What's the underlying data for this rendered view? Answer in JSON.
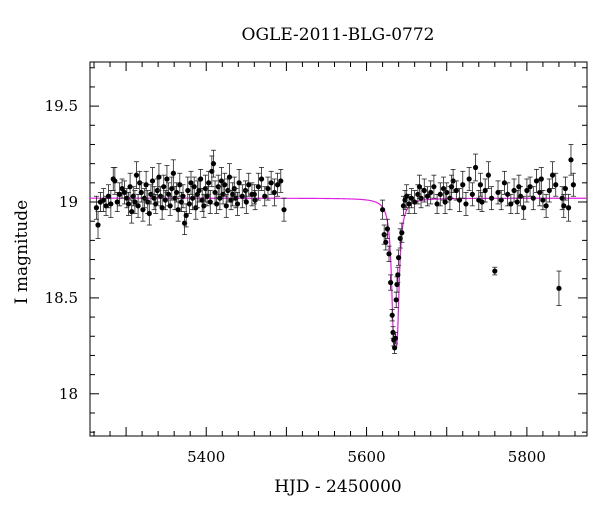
{
  "chart_data": {
    "type": "scatter",
    "title": "OGLE-2011-BLG-0772",
    "xlabel": "HJD - 2450000",
    "ylabel": "I magnitude",
    "xlim": [
      5255,
      5875
    ],
    "ylim": [
      19.73,
      17.78
    ],
    "y_inverted": true,
    "x_ticks": [
      5400,
      5600,
      5800
    ],
    "y_ticks": [
      18,
      18.5,
      19,
      19.5
    ],
    "grid": false,
    "colors": {
      "points": "#000000",
      "model": "#e020e0"
    },
    "series": [
      {
        "kind": "points",
        "points": [
          [
            5263,
            18.97,
            0.06
          ],
          [
            5265,
            18.88,
            0.07
          ],
          [
            5268,
            19.0,
            0.05
          ],
          [
            5272,
            19.01,
            0.06
          ],
          [
            5275,
            18.98,
            0.05
          ],
          [
            5278,
            19.03,
            0.06
          ],
          [
            5281,
            18.99,
            0.07
          ],
          [
            5284,
            19.12,
            0.06
          ],
          [
            5286,
            19.11,
            0.07
          ],
          [
            5289,
            19.0,
            0.05
          ],
          [
            5292,
            19.04,
            0.06
          ],
          [
            5295,
            19.07,
            0.05
          ],
          [
            5298,
            19.05,
            0.06
          ],
          [
            5301,
            19.02,
            0.05
          ],
          [
            5303,
            18.99,
            0.06
          ],
          [
            5305,
            19.08,
            0.07
          ],
          [
            5307,
            18.95,
            0.06
          ],
          [
            5309,
            19.03,
            0.05
          ],
          [
            5311,
            19.0,
            0.06
          ],
          [
            5313,
            19.14,
            0.07
          ],
          [
            5315,
            18.98,
            0.06
          ],
          [
            5317,
            19.1,
            0.06
          ],
          [
            5319,
            19.05,
            0.05
          ],
          [
            5321,
            18.96,
            0.06
          ],
          [
            5323,
            19.02,
            0.05
          ],
          [
            5325,
            19.09,
            0.07
          ],
          [
            5327,
            19.0,
            0.06
          ],
          [
            5329,
            18.94,
            0.06
          ],
          [
            5331,
            19.04,
            0.05
          ],
          [
            5333,
            19.11,
            0.07
          ],
          [
            5335,
            19.02,
            0.06
          ],
          [
            5337,
            18.99,
            0.05
          ],
          [
            5339,
            19.06,
            0.06
          ],
          [
            5341,
            19.13,
            0.07
          ],
          [
            5343,
            19.03,
            0.05
          ],
          [
            5345,
            18.97,
            0.06
          ],
          [
            5347,
            19.08,
            0.06
          ],
          [
            5349,
            19.01,
            0.05
          ],
          [
            5351,
            19.12,
            0.07
          ],
          [
            5353,
            19.04,
            0.06
          ],
          [
            5355,
            18.98,
            0.05
          ],
          [
            5357,
            19.07,
            0.06
          ],
          [
            5359,
            19.15,
            0.07
          ],
          [
            5361,
            19.02,
            0.06
          ],
          [
            5363,
            19.05,
            0.05
          ],
          [
            5365,
            18.96,
            0.06
          ],
          [
            5367,
            19.09,
            0.06
          ],
          [
            5369,
            19.0,
            0.05
          ],
          [
            5371,
            19.03,
            0.06
          ],
          [
            5373,
            18.89,
            0.06
          ],
          [
            5375,
            18.93,
            0.06
          ],
          [
            5377,
            19.06,
            0.07
          ],
          [
            5379,
            18.99,
            0.05
          ],
          [
            5381,
            19.1,
            0.06
          ],
          [
            5383,
            19.02,
            0.06
          ],
          [
            5385,
            19.08,
            0.05
          ],
          [
            5387,
            18.97,
            0.06
          ],
          [
            5389,
            19.04,
            0.07
          ],
          [
            5391,
            19.06,
            0.06
          ],
          [
            5393,
            19.12,
            0.05
          ],
          [
            5395,
            19.01,
            0.06
          ],
          [
            5397,
            18.98,
            0.06
          ],
          [
            5399,
            19.07,
            0.07
          ],
          [
            5401,
            19.03,
            0.05
          ],
          [
            5403,
            19.1,
            0.06
          ],
          [
            5405,
            19.0,
            0.06
          ],
          [
            5407,
            19.16,
            0.08
          ],
          [
            5409,
            19.2,
            0.07
          ],
          [
            5411,
            19.05,
            0.06
          ],
          [
            5413,
            18.99,
            0.05
          ],
          [
            5415,
            19.08,
            0.06
          ],
          [
            5417,
            19.02,
            0.06
          ],
          [
            5419,
            19.11,
            0.07
          ],
          [
            5421,
            19.04,
            0.05
          ],
          [
            5423,
            19.09,
            0.06
          ],
          [
            5425,
            18.98,
            0.06
          ],
          [
            5427,
            19.06,
            0.06
          ],
          [
            5429,
            19.13,
            0.07
          ],
          [
            5431,
            19.01,
            0.05
          ],
          [
            5433,
            19.04,
            0.06
          ],
          [
            5435,
            19.07,
            0.06
          ],
          [
            5437,
            19.02,
            0.05
          ],
          [
            5439,
            18.99,
            0.06
          ],
          [
            5441,
            19.1,
            0.07
          ],
          [
            5445,
            19.03,
            0.06
          ],
          [
            5449,
            19.06,
            0.05
          ],
          [
            5453,
            19.09,
            0.06
          ],
          [
            5457,
            19.04,
            0.06
          ],
          [
            5461,
            19.01,
            0.05
          ],
          [
            5465,
            19.08,
            0.07
          ],
          [
            5469,
            19.12,
            0.06
          ],
          [
            5473,
            19.03,
            0.05
          ],
          [
            5477,
            19.07,
            0.06
          ],
          [
            5481,
            19.1,
            0.06
          ],
          [
            5485,
            19.05,
            0.07
          ],
          [
            5489,
            19.09,
            0.06
          ],
          [
            5493,
            19.11,
            0.06
          ],
          [
            5497,
            18.96,
            0.06
          ],
          [
            5450,
            19.0,
            0.06
          ],
          [
            5460,
            19.04,
            0.05
          ],
          [
            5620,
            18.96,
            0.05
          ],
          [
            5622,
            18.83,
            0.05
          ],
          [
            5624,
            18.79,
            0.04
          ],
          [
            5626,
            18.86,
            0.05
          ],
          [
            5628,
            18.73,
            0.04
          ],
          [
            5630,
            18.58,
            0.04
          ],
          [
            5632,
            18.41,
            0.03
          ],
          [
            5633,
            18.32,
            0.03
          ],
          [
            5634,
            18.28,
            0.03
          ],
          [
            5635,
            18.24,
            0.03
          ],
          [
            5636,
            18.29,
            0.03
          ],
          [
            5637,
            18.49,
            0.04
          ],
          [
            5638,
            18.57,
            0.04
          ],
          [
            5639,
            18.62,
            0.04
          ],
          [
            5640,
            18.71,
            0.04
          ],
          [
            5642,
            18.81,
            0.05
          ],
          [
            5644,
            18.84,
            0.05
          ],
          [
            5646,
            18.98,
            0.05
          ],
          [
            5648,
            19.01,
            0.05
          ],
          [
            5650,
            19.03,
            0.06
          ],
          [
            5653,
            18.99,
            0.05
          ],
          [
            5656,
            19.02,
            0.05
          ],
          [
            5660,
            19.0,
            0.06
          ],
          [
            5664,
            19.04,
            0.05
          ],
          [
            5668,
            19.02,
            0.05
          ],
          [
            5672,
            19.06,
            0.06
          ],
          [
            5676,
            19.03,
            0.05
          ],
          [
            5680,
            19.05,
            0.06
          ],
          [
            5684,
            19.08,
            0.06
          ],
          [
            5688,
            18.99,
            0.05
          ],
          [
            5692,
            19.04,
            0.06
          ],
          [
            5696,
            19.07,
            0.06
          ],
          [
            5700,
            19.05,
            0.05
          ],
          [
            5704,
            19.02,
            0.06
          ],
          [
            5708,
            19.11,
            0.06
          ],
          [
            5712,
            19.06,
            0.05
          ],
          [
            5716,
            19.01,
            0.06
          ],
          [
            5720,
            19.09,
            0.07
          ],
          [
            5724,
            18.99,
            0.06
          ],
          [
            5728,
            19.12,
            0.06
          ],
          [
            5732,
            19.04,
            0.06
          ],
          [
            5736,
            19.18,
            0.07
          ],
          [
            5740,
            19.01,
            0.05
          ],
          [
            5744,
            19.0,
            0.05
          ],
          [
            5748,
            19.06,
            0.06
          ],
          [
            5752,
            19.14,
            0.07
          ],
          [
            5756,
            19.02,
            0.06
          ],
          [
            5760,
            18.64,
            0.02
          ],
          [
            5764,
            19.05,
            0.06
          ],
          [
            5768,
            19.01,
            0.05
          ],
          [
            5772,
            19.1,
            0.06
          ],
          [
            5776,
            19.04,
            0.06
          ],
          [
            5780,
            18.99,
            0.05
          ],
          [
            5784,
            19.06,
            0.06
          ],
          [
            5788,
            19.0,
            0.06
          ],
          [
            5792,
            19.03,
            0.05
          ],
          [
            5796,
            18.97,
            0.06
          ],
          [
            5800,
            19.06,
            0.06
          ],
          [
            5804,
            19.08,
            0.05
          ],
          [
            5808,
            19.02,
            0.06
          ],
          [
            5812,
            19.11,
            0.06
          ],
          [
            5816,
            19.05,
            0.07
          ],
          [
            5820,
            19.01,
            0.05
          ],
          [
            5824,
            18.98,
            0.06
          ],
          [
            5828,
            19.06,
            0.06
          ],
          [
            5832,
            19.14,
            0.07
          ],
          [
            5836,
            19.09,
            0.06
          ],
          [
            5840,
            18.55,
            0.09
          ],
          [
            5844,
            19.02,
            0.06
          ],
          [
            5848,
            19.07,
            0.06
          ],
          [
            5852,
            18.97,
            0.07
          ],
          [
            5855,
            19.22,
            0.08
          ],
          [
            5858,
            19.09,
            0.06
          ],
          [
            5706,
            19.08,
            0.06
          ],
          [
            5742,
            19.09,
            0.06
          ],
          [
            5790,
            19.08,
            0.06
          ],
          [
            5818,
            19.12,
            0.06
          ],
          [
            5846,
            18.98,
            0.06
          ],
          [
            5666,
            19.08,
            0.06
          ],
          [
            5698,
            19.0,
            0.06
          ]
        ]
      },
      {
        "kind": "model",
        "model": {
          "baseline": 19.02,
          "peak_time": 5636,
          "peak_brightening": 0.78,
          "width": 6.2
        }
      }
    ]
  }
}
